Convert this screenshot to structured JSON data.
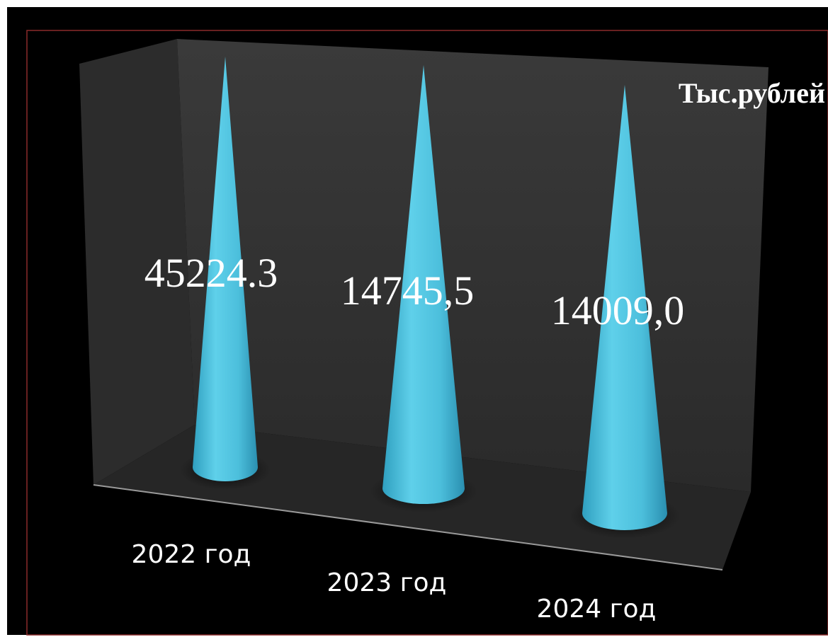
{
  "chart_data": {
    "type": "bar",
    "shape": "cone-3d",
    "categories": [
      "2022 год",
      "2023 год",
      "2024 год"
    ],
    "values": [
      45224.3,
      14745.5,
      14009.0
    ],
    "data_labels": [
      "45224.3",
      "14745,5",
      "14009,0"
    ],
    "unit_label": "Тыс.рублей",
    "title": "",
    "xlabel": "",
    "ylabel": "",
    "grid": false,
    "legend": "none"
  },
  "colors": {
    "background": "#000000",
    "wall": "#333333",
    "floor": "#2b2b2b",
    "bar": "#4fc3e0",
    "border": "#8b2a2a",
    "text": "#ffffff"
  }
}
